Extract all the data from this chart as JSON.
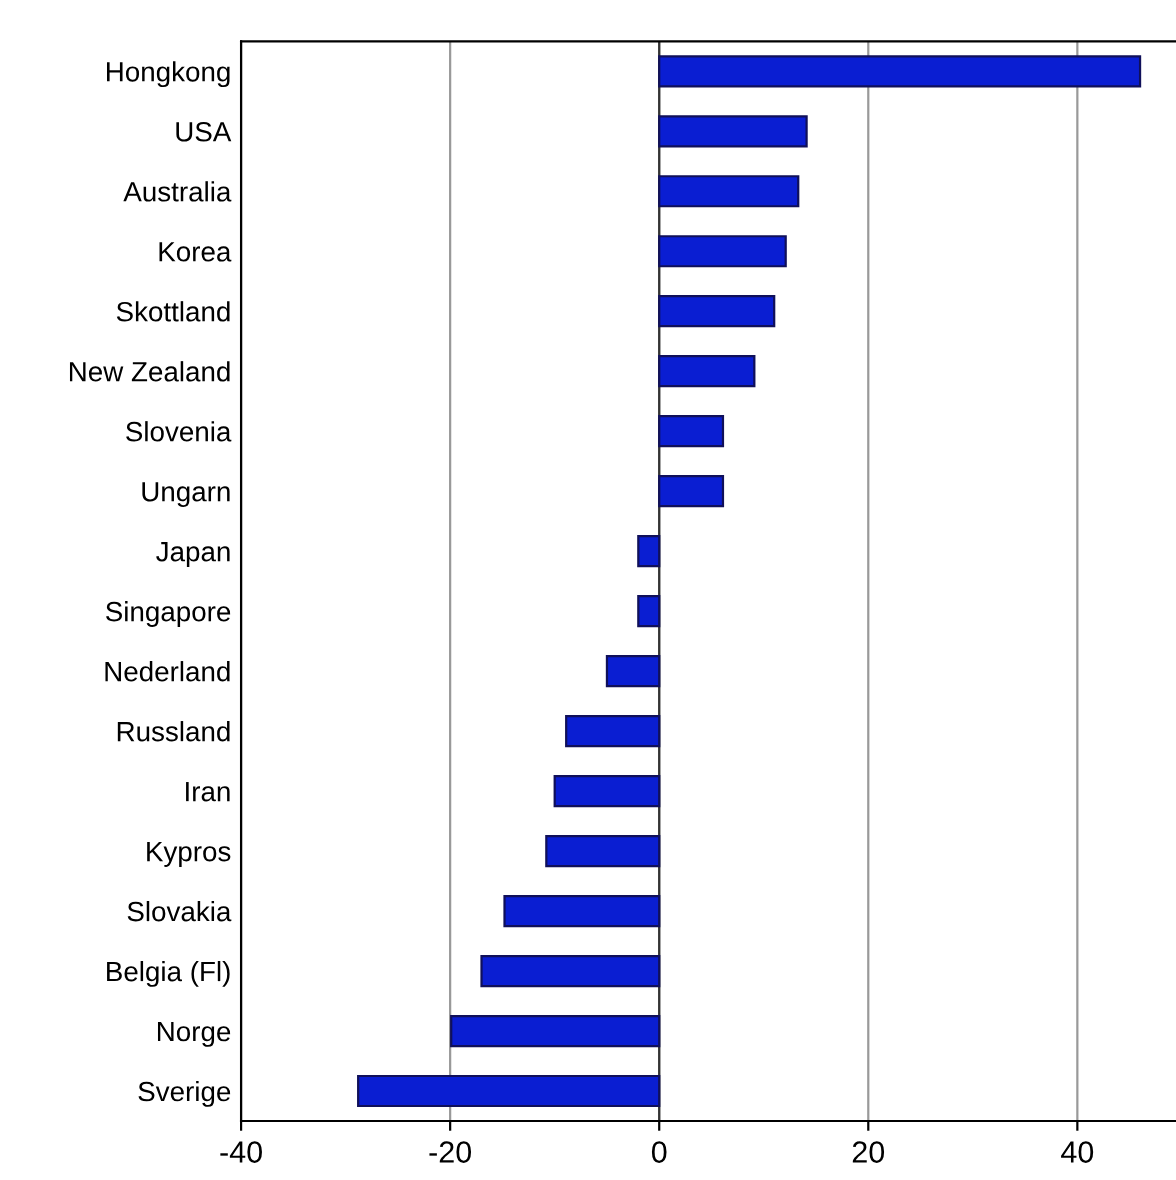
{
  "chart_data": {
    "type": "bar",
    "orientation": "horizontal",
    "categories": [
      "Hongkong",
      "USA",
      "Australia",
      "Korea",
      "Skottland",
      "New Zealand",
      "Slovenia",
      "Ungarn",
      "Japan",
      "Singapore",
      "Nederland",
      "Russland",
      "Iran",
      "Kypros",
      "Slovakia",
      "Belgia (Fl)",
      "Norge",
      "Sverige"
    ],
    "values": [
      46,
      14.1,
      13.3,
      12.1,
      11,
      9.1,
      6.1,
      6.1,
      -2,
      -2,
      -5,
      -8.9,
      -10,
      -10.8,
      -14.8,
      -17,
      -19.9,
      -28.8
    ],
    "color": "#0a1ed2",
    "xlim": [
      -40,
      50
    ],
    "xticks": [
      -40,
      -20,
      0,
      20,
      40
    ],
    "grid": "x",
    "legend": false
  }
}
